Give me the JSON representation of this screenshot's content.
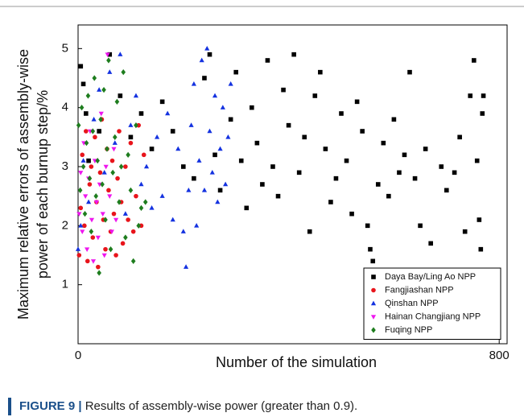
{
  "chart_data": {
    "type": "scatter",
    "xlabel": "Number of the simulation",
    "ylabel": [
      "Maximum relative errors of assembly-wise",
      "power of each burnup step/%"
    ],
    "xlim": [
      0,
      815
    ],
    "ylim": [
      0,
      5.4
    ],
    "xticks": [
      0,
      800
    ],
    "yticks": [
      1,
      2,
      3,
      4,
      5
    ],
    "legend": "lower right",
    "series": [
      {
        "name": "Daya Bay/Ling Ao NPP",
        "color": "#000000",
        "marker": "square",
        "x": [
          5,
          10,
          15,
          20,
          40,
          60,
          80,
          100,
          120,
          140,
          160,
          180,
          200,
          220,
          240,
          250,
          260,
          270,
          290,
          300,
          310,
          320,
          330,
          340,
          350,
          360,
          370,
          380,
          390,
          400,
          410,
          420,
          430,
          440,
          450,
          460,
          470,
          480,
          490,
          500,
          510,
          520,
          530,
          540,
          550,
          555,
          560,
          570,
          580,
          590,
          600,
          610,
          620,
          630,
          640,
          650,
          660,
          670,
          690,
          700,
          715,
          725,
          735,
          745,
          752,
          758,
          762,
          765,
          768,
          770
        ],
        "values": [
          4.7,
          4.4,
          3.9,
          3.1,
          3.6,
          4.9,
          4.2,
          3.5,
          3.9,
          3.3,
          4.1,
          3.6,
          3.0,
          2.8,
          4.5,
          4.9,
          3.2,
          2.6,
          3.8,
          4.6,
          3.1,
          2.3,
          4.0,
          3.4,
          2.7,
          4.8,
          3.0,
          2.5,
          4.3,
          3.7,
          4.9,
          2.9,
          3.5,
          1.9,
          4.2,
          4.6,
          3.3,
          2.4,
          2.8,
          3.9,
          3.1,
          2.2,
          4.1,
          3.6,
          2.0,
          1.6,
          1.4,
          2.7,
          3.4,
          2.5,
          3.8,
          2.9,
          3.2,
          4.6,
          2.8,
          2.0,
          3.3,
          1.7,
          3.0,
          2.6,
          2.9,
          3.5,
          1.9,
          4.2,
          4.8,
          3.1,
          2.1,
          1.6,
          3.9,
          4.2
        ]
      },
      {
        "name": "Fangjiashan NPP",
        "color": "#e8141b",
        "marker": "circle",
        "x": [
          2,
          5,
          8,
          12,
          15,
          18,
          22,
          25,
          28,
          32,
          35,
          38,
          42,
          45,
          48,
          52,
          55,
          58,
          62,
          65,
          68,
          72,
          75,
          78,
          82,
          85,
          90,
          95,
          100,
          105,
          110,
          115,
          120,
          125
        ],
        "values": [
          1.5,
          2.3,
          3.2,
          2.0,
          3.6,
          1.4,
          2.7,
          3.0,
          1.8,
          3.5,
          2.4,
          1.3,
          2.9,
          3.8,
          2.1,
          1.6,
          3.3,
          2.6,
          1.9,
          3.1,
          2.2,
          1.5,
          2.8,
          3.6,
          2.4,
          1.7,
          3.0,
          2.1,
          3.4,
          1.9,
          2.5,
          3.7,
          2.0,
          3.2
        ]
      },
      {
        "name": "Qinshan NPP",
        "color": "#1432e0",
        "marker": "triangle",
        "x": [
          0,
          5,
          10,
          20,
          30,
          40,
          50,
          60,
          70,
          80,
          90,
          100,
          110,
          120,
          130,
          140,
          150,
          160,
          170,
          180,
          190,
          200,
          205,
          210,
          215,
          220,
          225,
          230,
          235,
          240,
          245,
          250,
          255,
          260,
          265,
          270,
          275,
          280,
          285,
          290
        ],
        "values": [
          1.6,
          2.0,
          3.1,
          2.4,
          3.8,
          4.3,
          2.9,
          4.6,
          3.4,
          4.9,
          2.2,
          3.7,
          4.2,
          2.7,
          3.0,
          2.3,
          3.5,
          2.5,
          3.9,
          2.1,
          3.3,
          1.9,
          1.3,
          2.6,
          3.7,
          4.4,
          2.0,
          3.1,
          4.8,
          2.6,
          5.0,
          3.6,
          2.9,
          4.2,
          2.4,
          3.3,
          4.0,
          2.7,
          3.5,
          4.4
        ]
      },
      {
        "name": "Hainan Changjiang NPP",
        "color": "#ee16ee",
        "marker": "triangle-down",
        "x": [
          2,
          5,
          8,
          11,
          14,
          17,
          20,
          23,
          26,
          29,
          32,
          35,
          38,
          41,
          44,
          47,
          50,
          53,
          56,
          60,
          64,
          68,
          72
        ],
        "values": [
          2.2,
          2.9,
          1.9,
          3.4,
          2.5,
          1.6,
          2.8,
          3.6,
          2.1,
          1.4,
          3.1,
          2.4,
          1.8,
          2.7,
          3.9,
          2.2,
          1.5,
          3.0,
          4.9,
          2.5,
          1.9,
          3.3,
          2.1
        ]
      },
      {
        "name": "Fuqing NPP",
        "color": "#1e7d1e",
        "marker": "diamond",
        "x": [
          1,
          4,
          7,
          10,
          13,
          16,
          19,
          22,
          25,
          28,
          31,
          34,
          37,
          40,
          43,
          46,
          49,
          52,
          55,
          58,
          62,
          66,
          70,
          74,
          78,
          82,
          86,
          90,
          95,
          100,
          105,
          110,
          115,
          120,
          128
        ],
        "values": [
          3.7,
          2.6,
          4.0,
          3.0,
          2.2,
          3.4,
          4.2,
          2.8,
          1.9,
          3.6,
          4.5,
          2.5,
          3.1,
          1.2,
          3.8,
          2.7,
          4.3,
          2.1,
          3.3,
          4.8,
          1.6,
          2.9,
          3.5,
          4.1,
          2.4,
          3.0,
          4.6,
          1.8,
          3.2,
          2.6,
          1.4,
          3.7,
          2.0,
          2.3,
          2.4
        ]
      }
    ]
  },
  "caption": {
    "label": "FIGURE 9 |",
    "text": "Results of assembly-wise power (greater than 0.9)."
  }
}
